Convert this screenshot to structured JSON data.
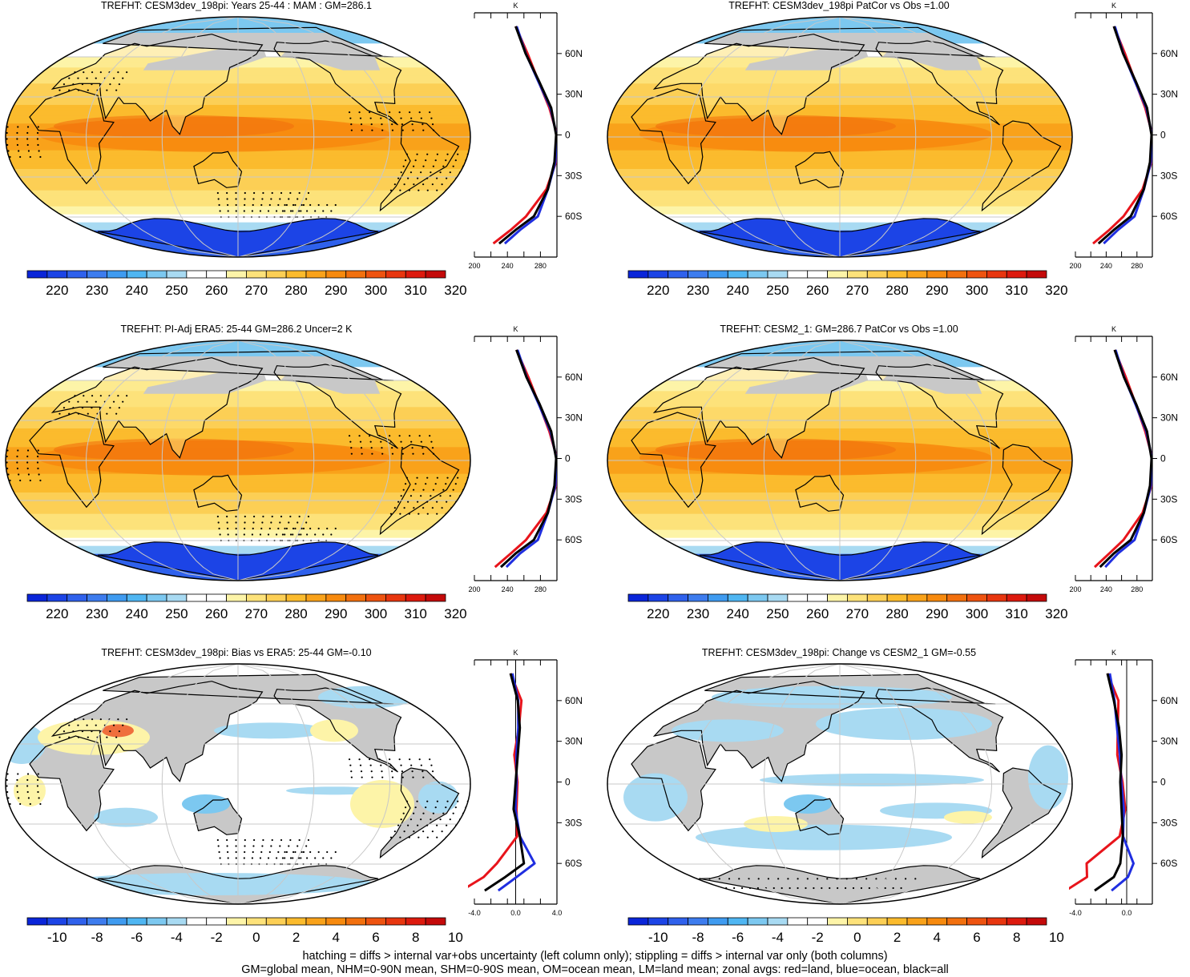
{
  "panels": [
    {
      "title": "TREFHT: CESM3dev_198pi: Years 25-44 : MAM : GM=286.1",
      "kind": "abs",
      "stipple": "heavy"
    },
    {
      "title": "TREFHT: CESM3dev_198pi PatCor vs Obs =1.00",
      "kind": "abs",
      "stipple": "none"
    },
    {
      "title": "TREFHT: PI-Adj ERA5: 25-44 GM=286.2 Uncer=2 K",
      "kind": "abs",
      "stipple": "heavy"
    },
    {
      "title": "TREFHT: CESM2_1: GM=286.7 PatCor vs Obs =1.00",
      "kind": "abs",
      "stipple": "none"
    },
    {
      "title": "TREFHT: CESM3dev_198pi: Bias vs ERA5: 25-44 GM=-0.10",
      "kind": "bias",
      "stipple": "heavy"
    },
    {
      "title": "TREFHT: CESM3dev_198pi: Change vs CESM2_1 GM=-0.55",
      "kind": "change",
      "stipple": "light"
    }
  ],
  "colorbars": {
    "abs": {
      "labels": [
        "220",
        "230",
        "240",
        "250",
        "260",
        "270",
        "280",
        "290",
        "300",
        "310",
        "320"
      ],
      "colors": [
        "#0a25d9",
        "#1c44e6",
        "#2f61ec",
        "#3d7cee",
        "#3f9bf0",
        "#4fb6f2",
        "#7cc8f0",
        "#a8daf2",
        "#ffffff",
        "#ffffff",
        "#fdf4a8",
        "#fde27a",
        "#fccf55",
        "#fbbb2d",
        "#f9a21a",
        "#f78a0e",
        "#f2700e",
        "#ee5310",
        "#e8360f",
        "#dd1a0e",
        "#c40a0a"
      ]
    },
    "diff": {
      "labels": [
        "-10",
        "-8",
        "-6",
        "-4",
        "-2",
        "0",
        "2",
        "4",
        "6",
        "8",
        "10"
      ],
      "colors": [
        "#0a25d9",
        "#1c44e6",
        "#2f61ec",
        "#3d7cee",
        "#3f9bf0",
        "#4fb6f2",
        "#7cc8f0",
        "#a8daf2",
        "#ffffff",
        "#ffffff",
        "#fdf4a8",
        "#fde27a",
        "#fccf55",
        "#fbbb2d",
        "#f9a21a",
        "#f78a0e",
        "#f2700e",
        "#ee5310",
        "#e8360f",
        "#dd1a0e",
        "#c40a0a"
      ]
    }
  },
  "zonal": {
    "unit": "K",
    "lat_ticks": [
      "60N",
      "30N",
      "0",
      "30S",
      "60S"
    ],
    "abs_xticks": [
      "200",
      "240",
      "280"
    ],
    "bias_xticks": [
      "-4.0",
      "0.0",
      "4.0"
    ],
    "change_xticks": [
      "-4.0",
      "0.0"
    ],
    "line_colors": {
      "land": "#e8141b",
      "ocean": "#1f2ee0",
      "all": "#000000"
    }
  },
  "map_labels": {
    "lat": [
      "60N",
      "30N",
      "0",
      "30S",
      "60S"
    ]
  },
  "footnote": [
    "hatching = diffs > internal var+obs uncertainty (left column only); stippling = diffs > internal var only (both columns)",
    "GM=global mean, NHM=0-90N mean, SHM=0-90S mean, OM=ocean mean, LM=land mean; zonal avgs: red=land, blue=ocean, black=all"
  ],
  "chart_data": [
    {
      "type": "heatmap",
      "title": "TREFHT: CESM3dev_198pi: Years 25-44 : MAM : GM=286.1",
      "units": "K",
      "levels": [
        220,
        230,
        240,
        250,
        260,
        270,
        280,
        290,
        300,
        310,
        320
      ],
      "zonal_mean": {
        "lat": [
          80,
          60,
          40,
          20,
          0,
          -20,
          -40,
          -60,
          -70,
          -80
        ],
        "all": [
          250,
          262,
          278,
          293,
          299,
          297,
          289,
          272,
          250,
          230
        ]
      }
    },
    {
      "type": "heatmap",
      "title": "TREFHT: CESM3dev_198pi PatCor vs Obs =1.00",
      "units": "K",
      "levels": [
        220,
        230,
        240,
        250,
        260,
        270,
        280,
        290,
        300,
        310,
        320
      ],
      "zonal_mean": {
        "lat": [
          80,
          60,
          40,
          20,
          0,
          -20,
          -40,
          -60,
          -70,
          -80
        ],
        "all": [
          250,
          262,
          278,
          293,
          299,
          297,
          289,
          272,
          250,
          230
        ]
      }
    },
    {
      "type": "heatmap",
      "title": "TREFHT: PI-Adj ERA5: 25-44 GM=286.2 Uncer=2 K",
      "units": "K",
      "levels": [
        220,
        230,
        240,
        250,
        260,
        270,
        280,
        290,
        300,
        310,
        320
      ],
      "zonal_mean": {
        "lat": [
          80,
          60,
          40,
          20,
          0,
          -20,
          -40,
          -60,
          -70,
          -80
        ],
        "all": [
          251,
          263,
          279,
          293,
          299,
          297,
          289,
          272,
          250,
          232
        ]
      }
    },
    {
      "type": "heatmap",
      "title": "TREFHT: CESM2_1: GM=286.7 PatCor vs Obs =1.00",
      "units": "K",
      "levels": [
        220,
        230,
        240,
        250,
        260,
        270,
        280,
        290,
        300,
        310,
        320
      ],
      "zonal_mean": {
        "lat": [
          80,
          60,
          40,
          20,
          0,
          -20,
          -40,
          -60,
          -70,
          -80
        ],
        "all": [
          251,
          263,
          279,
          293,
          299,
          297,
          289,
          272,
          250,
          232
        ]
      }
    },
    {
      "type": "heatmap",
      "title": "TREFHT: CESM3dev_198pi: Bias vs ERA5: 25-44 GM=-0.10",
      "units": "K",
      "levels": [
        -10,
        -8,
        -6,
        -4,
        -2,
        0,
        2,
        4,
        6,
        8,
        10
      ],
      "zonal_mean": {
        "lat": [
          80,
          60,
          40,
          20,
          0,
          -20,
          -40,
          -60,
          -70,
          -80
        ],
        "all": [
          -0.5,
          0.2,
          0.4,
          0.2,
          0.0,
          -0.2,
          0.4,
          0.8,
          -1.0,
          -3.0
        ]
      }
    },
    {
      "type": "heatmap",
      "title": "TREFHT: CESM3dev_198pi: Change vs CESM2_1 GM=-0.55",
      "units": "K",
      "levels": [
        -10,
        -8,
        -6,
        -4,
        -2,
        0,
        2,
        4,
        6,
        8,
        10
      ],
      "zonal_mean": {
        "lat": [
          80,
          60,
          40,
          20,
          0,
          -20,
          -40,
          -60,
          -70,
          -80
        ],
        "all": [
          -1.5,
          -1.0,
          -0.6,
          -0.4,
          -0.5,
          -0.4,
          -0.3,
          -0.5,
          -1.0,
          -2.5
        ]
      }
    }
  ]
}
